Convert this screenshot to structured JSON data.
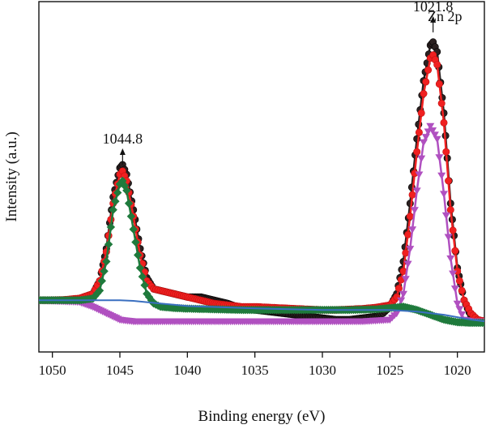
{
  "chart_data": {
    "type": "scatter",
    "title": "",
    "panel_label": "Zn 2p",
    "xlabel": "Binding energy (eV)",
    "ylabel": "Intensity (a.u.)",
    "xlim": [
      1051,
      1018
    ],
    "x_reversed": true,
    "ylim": [
      0,
      100
    ],
    "xticks": [
      1050,
      1045,
      1040,
      1035,
      1030,
      1025,
      1020
    ],
    "yticks_shown": false,
    "grid": false,
    "annotations": [
      {
        "text": "1044.8",
        "x": 1044.8,
        "y": 53,
        "arrow": true
      },
      {
        "text": "1021.8",
        "x": 1021.8,
        "y": 94,
        "arrow": true
      }
    ],
    "series": [
      {
        "role": "raw-data",
        "marker": "circle",
        "color": "#2b2020",
        "x": [
          1051,
          1050,
          1049,
          1048,
          1047,
          1046.5,
          1046,
          1045.5,
          1045,
          1044.8,
          1044.5,
          1044,
          1043.5,
          1043,
          1042.5,
          1042,
          1041,
          1040,
          1039,
          1038,
          1037,
          1036,
          1035,
          1034,
          1033,
          1032,
          1031,
          1030,
          1029,
          1028,
          1027,
          1026,
          1025.5,
          1025,
          1024.5,
          1024,
          1023.5,
          1023,
          1022.5,
          1022,
          1021.8,
          1021.5,
          1021,
          1020.5,
          1020,
          1019.5,
          1019,
          1018.5,
          1018
        ],
        "y": [
          12,
          12,
          12,
          12.5,
          14,
          18,
          28,
          44,
          53,
          54,
          51,
          40,
          28,
          19,
          15.5,
          15,
          14,
          13,
          13,
          12,
          11,
          9.5,
          9,
          8.5,
          8,
          7.5,
          7,
          6.5,
          6,
          6,
          6.5,
          7,
          8,
          10,
          14,
          24,
          42,
          62,
          80,
          91,
          92,
          89,
          70,
          42,
          22,
          12,
          7,
          5.5,
          5
        ]
      },
      {
        "role": "envelope-fit",
        "marker": "circle",
        "color": "#f02020",
        "x": [
          1051,
          1050,
          1049,
          1048,
          1047,
          1046.5,
          1046,
          1045.5,
          1045,
          1044.8,
          1044.5,
          1044,
          1043.5,
          1043,
          1042.5,
          1042,
          1041,
          1040,
          1039,
          1038,
          1037,
          1036,
          1035,
          1034,
          1033,
          1032,
          1031,
          1030,
          1029,
          1028,
          1027,
          1026,
          1025,
          1024.5,
          1024,
          1023.5,
          1023,
          1022.5,
          1022,
          1021.8,
          1021.5,
          1021,
          1020.5,
          1020,
          1019.5,
          1019,
          1018.5,
          1018
        ],
        "y": [
          12,
          12,
          12.2,
          12.6,
          14,
          18,
          27,
          42,
          51,
          52,
          49,
          38,
          26,
          18,
          15.5,
          15,
          14,
          13,
          12,
          11,
          10.5,
          10,
          10,
          9.8,
          9.6,
          9.4,
          9.2,
          9,
          9,
          9.2,
          9.4,
          9.8,
          10.5,
          13,
          21,
          38,
          58,
          76,
          87,
          88,
          85,
          67,
          40,
          21,
          12,
          8,
          6,
          5.5
        ]
      },
      {
        "role": "component-1021.8",
        "marker": "triangle-down",
        "color": "#b050c0",
        "x": [
          1051,
          1048,
          1047,
          1046,
          1045,
          1044,
          1043,
          1042,
          1040,
          1035,
          1030,
          1027,
          1025,
          1024.5,
          1024,
          1023.5,
          1023,
          1022.5,
          1022,
          1021.5,
          1021,
          1020.5,
          1020,
          1019.5,
          1019,
          1018
        ],
        "y": [
          12,
          11.5,
          10,
          8,
          6,
          5.5,
          5.5,
          5.5,
          5.5,
          5.5,
          5.5,
          5.5,
          6,
          8,
          14,
          28,
          46,
          61,
          66,
          62,
          45,
          25,
          11,
          6,
          5.5,
          5.5
        ]
      },
      {
        "role": "component-1044.8",
        "marker": "diamond",
        "color": "#1f7a3c",
        "x": [
          1051,
          1049,
          1048,
          1047,
          1046.5,
          1046,
          1045.5,
          1045,
          1044.8,
          1044.5,
          1044,
          1043.5,
          1043,
          1042.5,
          1042,
          1041,
          1040,
          1038,
          1036,
          1034,
          1032,
          1030,
          1028,
          1026,
          1025,
          1024,
          1023,
          1022,
          1021,
          1020,
          1019,
          1018
        ],
        "y": [
          12,
          12,
          12,
          12.5,
          15,
          24,
          40,
          48,
          49,
          46,
          34,
          22,
          14,
          11,
          10,
          9.6,
          9.4,
          9.2,
          9,
          9,
          9,
          9,
          9,
          9.2,
          9.6,
          10,
          9,
          7.5,
          6,
          5.2,
          5,
          5
        ]
      },
      {
        "role": "background",
        "marker": "line",
        "color": "#3a6fc0",
        "x": [
          1051,
          1049,
          1047,
          1045,
          1044,
          1043,
          1042,
          1041,
          1040,
          1035,
          1030,
          1025,
          1023,
          1021,
          1019,
          1018
        ],
        "y": [
          12,
          12,
          12,
          12,
          11.8,
          11.4,
          11,
          10.6,
          10.2,
          9.5,
          9,
          9,
          8.5,
          7.5,
          6,
          5.5
        ]
      }
    ]
  }
}
